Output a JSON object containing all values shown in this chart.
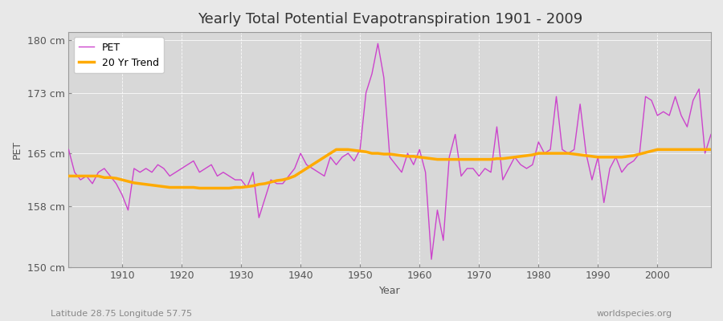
{
  "title": "Yearly Total Potential Evapotranspiration 1901 - 2009",
  "xlabel": "Year",
  "ylabel": "PET",
  "subtitle_left": "Latitude 28.75 Longitude 57.75",
  "subtitle_right": "worldspecies.org",
  "ylim": [
    150,
    181
  ],
  "yticks": [
    150,
    158,
    165,
    173,
    180
  ],
  "ytick_labels": [
    "150 cm",
    "158 cm",
    "165 cm",
    "173 cm",
    "180 cm"
  ],
  "years": [
    1901,
    1902,
    1903,
    1904,
    1905,
    1906,
    1907,
    1908,
    1909,
    1910,
    1911,
    1912,
    1913,
    1914,
    1915,
    1916,
    1917,
    1918,
    1919,
    1920,
    1921,
    1922,
    1923,
    1924,
    1925,
    1926,
    1927,
    1928,
    1929,
    1930,
    1931,
    1932,
    1933,
    1934,
    1935,
    1936,
    1937,
    1938,
    1939,
    1940,
    1941,
    1942,
    1943,
    1944,
    1945,
    1946,
    1947,
    1948,
    1949,
    1950,
    1951,
    1952,
    1953,
    1954,
    1955,
    1956,
    1957,
    1958,
    1959,
    1960,
    1961,
    1962,
    1963,
    1964,
    1965,
    1966,
    1967,
    1968,
    1969,
    1970,
    1971,
    1972,
    1973,
    1974,
    1975,
    1976,
    1977,
    1978,
    1979,
    1980,
    1981,
    1982,
    1983,
    1984,
    1985,
    1986,
    1987,
    1988,
    1989,
    1990,
    1991,
    1992,
    1993,
    1994,
    1995,
    1996,
    1997,
    1998,
    1999,
    2000,
    2001,
    2002,
    2003,
    2004,
    2005,
    2006,
    2007,
    2008,
    2009
  ],
  "pet": [
    165.5,
    162.5,
    161.5,
    162.0,
    161.0,
    162.5,
    163.0,
    162.0,
    161.0,
    159.5,
    157.5,
    163.0,
    162.5,
    163.0,
    162.5,
    163.5,
    163.0,
    162.0,
    162.5,
    163.0,
    163.5,
    164.0,
    162.5,
    163.0,
    163.5,
    162.0,
    162.5,
    162.0,
    161.5,
    161.5,
    160.5,
    162.5,
    156.5,
    159.0,
    161.5,
    161.0,
    161.0,
    162.0,
    163.0,
    165.0,
    163.5,
    163.0,
    162.5,
    162.0,
    164.5,
    163.5,
    164.5,
    165.0,
    164.0,
    165.5,
    173.0,
    175.5,
    179.5,
    175.0,
    164.5,
    163.5,
    162.5,
    165.0,
    163.5,
    165.5,
    162.5,
    151.0,
    157.5,
    153.5,
    164.5,
    167.5,
    162.0,
    163.0,
    163.0,
    162.0,
    163.0,
    162.5,
    168.5,
    161.5,
    163.0,
    164.5,
    163.5,
    163.0,
    163.5,
    166.5,
    165.0,
    165.5,
    172.5,
    165.5,
    165.0,
    165.5,
    171.5,
    165.0,
    161.5,
    164.5,
    158.5,
    163.0,
    164.5,
    162.5,
    163.5,
    164.0,
    165.0,
    172.5,
    172.0,
    170.0,
    170.5,
    170.0,
    172.5,
    170.0,
    168.5,
    172.0,
    173.5,
    165.0,
    167.5
  ],
  "trend": [
    162.0,
    162.0,
    162.0,
    162.0,
    162.0,
    162.0,
    161.8,
    161.8,
    161.7,
    161.5,
    161.3,
    161.1,
    161.0,
    160.9,
    160.8,
    160.7,
    160.6,
    160.5,
    160.5,
    160.5,
    160.5,
    160.5,
    160.4,
    160.4,
    160.4,
    160.4,
    160.4,
    160.4,
    160.5,
    160.5,
    160.6,
    160.7,
    160.9,
    161.0,
    161.2,
    161.4,
    161.5,
    161.7,
    162.0,
    162.5,
    163.0,
    163.5,
    164.0,
    164.5,
    165.0,
    165.5,
    165.5,
    165.5,
    165.4,
    165.3,
    165.2,
    165.0,
    165.0,
    164.9,
    164.9,
    164.8,
    164.7,
    164.6,
    164.6,
    164.5,
    164.4,
    164.3,
    164.2,
    164.2,
    164.2,
    164.2,
    164.2,
    164.2,
    164.2,
    164.2,
    164.2,
    164.2,
    164.3,
    164.3,
    164.4,
    164.5,
    164.6,
    164.7,
    164.8,
    165.0,
    165.0,
    165.0,
    165.0,
    165.0,
    165.0,
    164.9,
    164.8,
    164.7,
    164.6,
    164.5,
    164.5,
    164.5,
    164.5,
    164.5,
    164.6,
    164.7,
    164.9,
    165.1,
    165.3,
    165.5,
    165.5,
    165.5,
    165.5,
    165.5,
    165.5,
    165.5,
    165.5,
    165.5,
    165.5
  ],
  "pet_color": "#cc44cc",
  "trend_color": "#ffaa00",
  "bg_color": "#e8e8e8",
  "plot_bg_color": "#d8d8d8",
  "grid_color": "#ffffff",
  "title_fontsize": 13,
  "label_fontsize": 9,
  "tick_fontsize": 9
}
